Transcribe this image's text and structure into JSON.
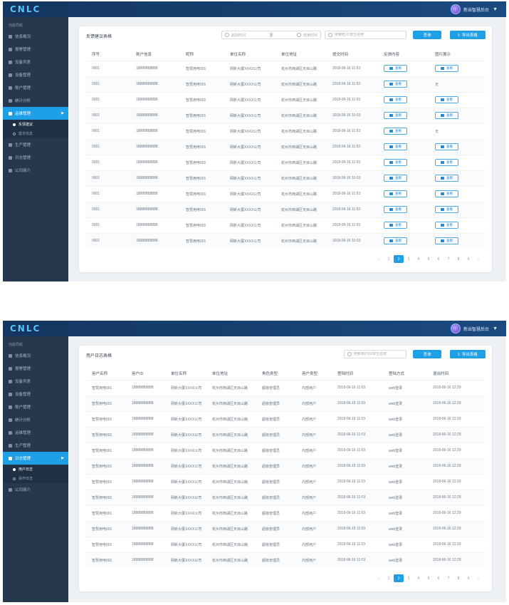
{
  "app": {
    "logo": "CNLC",
    "user_name": "新出智慧后台"
  },
  "screen1": {
    "sidebar": {
      "header": "功能导航",
      "items": [
        {
          "label": "信息概况",
          "active": false
        },
        {
          "label": "报警管理",
          "active": false
        },
        {
          "label": "设备列表",
          "active": false
        },
        {
          "label": "设备管理",
          "active": false
        },
        {
          "label": "账户管理",
          "active": false
        },
        {
          "label": "统计分析",
          "active": false
        },
        {
          "label": "运维管理",
          "active": true,
          "children": [
            {
              "label": "反馈建议",
              "active": true
            },
            {
              "label": "基本信息",
              "active": false
            }
          ]
        },
        {
          "label": "生产管理",
          "active": false
        },
        {
          "label": "日志管理",
          "active": false
        },
        {
          "label": "公司简介",
          "active": false
        }
      ]
    },
    "panel": {
      "title": "反馈建议表格",
      "date_start_placeholder": "起始时间",
      "date_sep": "至",
      "date_end_placeholder": "结束时间",
      "search_placeholder": "搜索账户/单位名称",
      "query_label": "查询",
      "export_label": "导出表格"
    },
    "table": {
      "headers": [
        "序号",
        "账户信息",
        "昵称",
        "单位名称",
        "单位地址",
        "提交时间",
        "反馈内容",
        "图片展示"
      ],
      "view_label": "查看",
      "rows": [
        {
          "no": "0001",
          "account": "18888888888",
          "nickname": "智慧用电001",
          "org": "网新大厦XXXX公司",
          "addr": "杭州市西湖区天目山路",
          "time": "2018-06-16  11:03",
          "feedback": "查看",
          "image": "查看"
        },
        {
          "no": "0001",
          "account": "18888888888",
          "nickname": "智慧用电001",
          "org": "网新大厦XXXX公司",
          "addr": "杭州市西湖区天目山路",
          "time": "2018-06-16  11:03",
          "feedback": "查看",
          "image": "无"
        },
        {
          "no": "0001",
          "account": "18888888888",
          "nickname": "智慧用电001",
          "org": "网新大厦XXXX公司",
          "addr": "杭州市西湖区天目山路",
          "time": "2018-06-16  11:03",
          "feedback": "查看",
          "image": "查看"
        },
        {
          "no": "0001",
          "account": "18888888888",
          "nickname": "智慧用电001",
          "org": "网新大厦XXXX公司",
          "addr": "杭州市西湖区天目山路",
          "time": "2018-06-16  11:03",
          "feedback": "查看",
          "image": "查看"
        },
        {
          "no": "0001",
          "account": "18888888888",
          "nickname": "智慧用电001",
          "org": "网新大厦XXXX公司",
          "addr": "杭州市西湖区天目山路",
          "time": "2018-06-16  11:03",
          "feedback": "查看",
          "image": "无"
        },
        {
          "no": "0001",
          "account": "18888888888",
          "nickname": "智慧用电001",
          "org": "网新大厦XXXX公司",
          "addr": "杭州市西湖区天目山路",
          "time": "2018-06-16  11:03",
          "feedback": "查看",
          "image": "查看"
        },
        {
          "no": "0001",
          "account": "18888888888",
          "nickname": "智慧用电001",
          "org": "网新大厦XXXX公司",
          "addr": "杭州市西湖区天目山路",
          "time": "2018-06-16  11:03",
          "feedback": "查看",
          "image": "查看"
        },
        {
          "no": "0001",
          "account": "18888888888",
          "nickname": "智慧用电001",
          "org": "网新大厦XXXX公司",
          "addr": "杭州市西湖区天目山路",
          "time": "2018-06-16  11:03",
          "feedback": "查看",
          "image": "查看"
        },
        {
          "no": "0001",
          "account": "18888888888",
          "nickname": "智慧用电001",
          "org": "网新大厦XXXX公司",
          "addr": "杭州市西湖区天目山路",
          "time": "2018-06-16  11:03",
          "feedback": "查看",
          "image": "查看"
        },
        {
          "no": "0001",
          "account": "18888888888",
          "nickname": "智慧用电001",
          "org": "网新大厦XXXX公司",
          "addr": "杭州市西湖区天目山路",
          "time": "2018-06-16  11:03",
          "feedback": "查看",
          "image": "查看"
        },
        {
          "no": "0001",
          "account": "18888888888",
          "nickname": "智慧用电001",
          "org": "网新大厦XXXX公司",
          "addr": "杭州市西湖区天目山路",
          "time": "2018-06-16  11:03",
          "feedback": "查看",
          "image": "查看"
        },
        {
          "no": "0001",
          "account": "18888888888",
          "nickname": "智慧用电001",
          "org": "网新大厦XXXX公司",
          "addr": "杭州市西湖区天目山路",
          "time": "2018-06-16  11:03",
          "feedback": "查看",
          "image": "查看"
        }
      ]
    },
    "pager": {
      "prev": "‹",
      "pages": [
        "1",
        "2",
        "3",
        "4",
        "5",
        "6",
        "7",
        "8",
        "9"
      ],
      "current": "2",
      "next": "›"
    }
  },
  "screen2": {
    "sidebar": {
      "header": "功能导航",
      "items": [
        {
          "label": "信息概况",
          "active": false
        },
        {
          "label": "报警管理",
          "active": false
        },
        {
          "label": "设备列表",
          "active": false
        },
        {
          "label": "设备管理",
          "active": false
        },
        {
          "label": "账户管理",
          "active": false
        },
        {
          "label": "统计分析",
          "active": false
        },
        {
          "label": "运维管理",
          "active": false
        },
        {
          "label": "生产管理",
          "active": false
        },
        {
          "label": "日志管理",
          "active": true,
          "children": [
            {
              "label": "用户日志",
              "active": true
            },
            {
              "label": "操作日志",
              "active": false
            }
          ]
        },
        {
          "label": "公司简介",
          "active": false
        }
      ]
    },
    "panel": {
      "title": "用户日志表格",
      "search_placeholder": "搜索用户ID/单位名称",
      "query_label": "查询",
      "export_label": "导出表格"
    },
    "table": {
      "headers": [
        "用户名称",
        "用户ID",
        "单位名称",
        "单位地址",
        "角色类型",
        "用户类型",
        "登陆时间",
        "登陆方式",
        "退出时间"
      ],
      "rows": [
        {
          "name": "智慧用电001",
          "uid": "18888888888",
          "org": "网新大厦XXXX公司",
          "addr": "杭州市西湖区天目山路",
          "role": "超级管理员",
          "type": "内部用户",
          "login": "2018-06-16  11:03",
          "method": "web登录",
          "logout": "2018-06-16  12:29"
        },
        {
          "name": "智慧用电001",
          "uid": "18888888888",
          "org": "网新大厦XXXX公司",
          "addr": "杭州市西湖区天目山路",
          "role": "超级管理员",
          "type": "内部用户",
          "login": "2018-06-16  11:03",
          "method": "web登录",
          "logout": "2018-06-16  12:29"
        },
        {
          "name": "智慧用电001",
          "uid": "18888888888",
          "org": "网新大厦XXXX公司",
          "addr": "杭州市西湖区天目山路",
          "role": "超级管理员",
          "type": "内部用户",
          "login": "2018-06-16  11:03",
          "method": "web登录",
          "logout": "2018-06-16  12:29"
        },
        {
          "name": "智慧用电001",
          "uid": "18888888888",
          "org": "网新大厦XXXX公司",
          "addr": "杭州市西湖区天目山路",
          "role": "超级管理员",
          "type": "内部用户",
          "login": "2018-06-16  11:03",
          "method": "web登录",
          "logout": "2018-06-16  12:29"
        },
        {
          "name": "智慧用电001",
          "uid": "18888888888",
          "org": "网新大厦XXXX公司",
          "addr": "杭州市西湖区天目山路",
          "role": "超级管理员",
          "type": "内部用户",
          "login": "2018-06-16  11:03",
          "method": "web登录",
          "logout": "2018-06-16  12:29"
        },
        {
          "name": "智慧用电001",
          "uid": "18888888888",
          "org": "网新大厦XXXX公司",
          "addr": "杭州市西湖区天目山路",
          "role": "超级管理员",
          "type": "内部用户",
          "login": "2018-06-16  11:03",
          "method": "web登录",
          "logout": "2018-06-16  12:29"
        },
        {
          "name": "智慧用电001",
          "uid": "18888888888",
          "org": "网新大厦XXXX公司",
          "addr": "杭州市西湖区天目山路",
          "role": "超级管理员",
          "type": "内部用户",
          "login": "2018-06-16  11:03",
          "method": "web登录",
          "logout": "2018-06-16  12:29"
        },
        {
          "name": "智慧用电001",
          "uid": "18888888888",
          "org": "网新大厦XXXX公司",
          "addr": "杭州市西湖区天目山路",
          "role": "超级管理员",
          "type": "内部用户",
          "login": "2018-06-16  11:03",
          "method": "web登录",
          "logout": "2018-06-16  12:29"
        },
        {
          "name": "智慧用电001",
          "uid": "18888888888",
          "org": "网新大厦XXXX公司",
          "addr": "杭州市西湖区天目山路",
          "role": "超级管理员",
          "type": "内部用户",
          "login": "2018-06-16  11:03",
          "method": "web登录",
          "logout": "2018-06-16  12:29"
        },
        {
          "name": "智慧用电001",
          "uid": "18888888888",
          "org": "网新大厦XXXX公司",
          "addr": "杭州市西湖区天目山路",
          "role": "超级管理员",
          "type": "内部用户",
          "login": "2018-06-16  11:03",
          "method": "web登录",
          "logout": "2018-06-16  12:29"
        },
        {
          "name": "智慧用电001",
          "uid": "18888888888",
          "org": "网新大厦XXXX公司",
          "addr": "杭州市西湖区天目山路",
          "role": "超级管理员",
          "type": "内部用户",
          "login": "2018-06-16  11:03",
          "method": "web登录",
          "logout": "2018-06-16  12:29"
        },
        {
          "name": "智慧用电001",
          "uid": "18888888888",
          "org": "网新大厦XXXX公司",
          "addr": "杭州市西湖区天目山路",
          "role": "超级管理员",
          "type": "内部用户",
          "login": "2018-06-16  11:03",
          "method": "web登录",
          "logout": "2018-06-16  12:29"
        }
      ]
    },
    "pager": {
      "prev": "‹",
      "pages": [
        "1",
        "2",
        "3",
        "4",
        "5",
        "6",
        "7",
        "8",
        "9"
      ],
      "current": "2",
      "next": "›"
    }
  },
  "colors": {
    "accent": "#1e9fe6",
    "sidebar": "#25384d",
    "topbar": "#14365f"
  }
}
